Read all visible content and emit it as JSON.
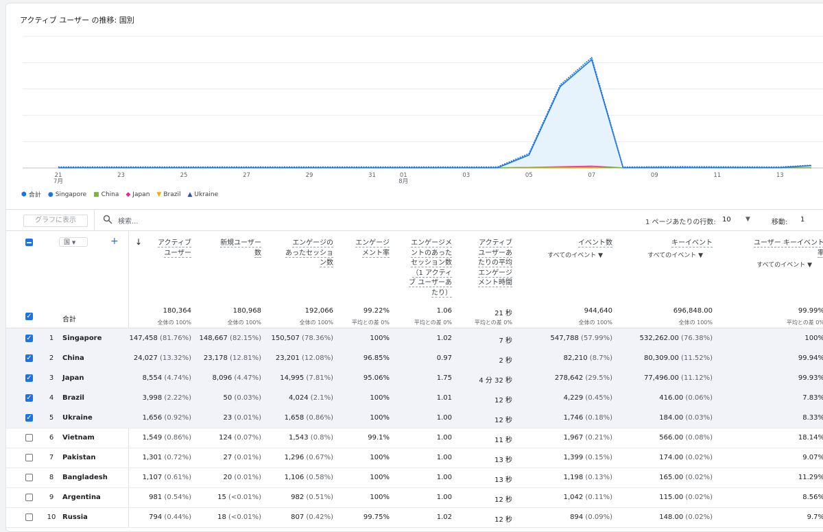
{
  "chart_title": "アクティブ ユーザー の推移: 国別",
  "chart_data": {
    "type": "area",
    "x": [
      "21",
      "22",
      "23",
      "24",
      "25",
      "26",
      "27",
      "28",
      "29",
      "30",
      "31",
      "01",
      "02",
      "03",
      "04",
      "05",
      "06",
      "07",
      "08",
      "09",
      "10",
      "11",
      "12",
      "13",
      "14"
    ],
    "x_tick_labels": [
      "21",
      "23",
      "25",
      "27",
      "29",
      "31",
      "01",
      "03",
      "05",
      "07",
      "09",
      "11",
      "13"
    ],
    "x_month_labels": {
      "21": "7月",
      "01": "8月"
    },
    "series": [
      {
        "name": "合計",
        "color": "#1a73e8",
        "values": [
          480,
          480,
          470,
          470,
          470,
          480,
          480,
          470,
          470,
          470,
          470,
          470,
          470,
          470,
          470,
          6800,
          39200,
          52000,
          450,
          560,
          620,
          560,
          510,
          450,
          1300
        ]
      },
      {
        "name": "Singapore",
        "color": "#1a73e8",
        "values": [
          100,
          100,
          100,
          100,
          100,
          100,
          100,
          100,
          100,
          100,
          100,
          100,
          100,
          100,
          100,
          6100,
          38400,
          51000,
          120,
          150,
          160,
          160,
          140,
          120,
          1100
        ]
      },
      {
        "name": "China",
        "color": "#7cb342",
        "values": [
          100,
          110,
          110,
          120,
          120,
          110,
          110,
          110,
          110,
          110,
          110,
          110,
          110,
          110,
          110,
          300,
          400,
          400,
          100,
          100,
          100,
          100,
          100,
          100,
          100
        ]
      },
      {
        "name": "Japan",
        "color": "#e52592",
        "values": [
          80,
          80,
          80,
          80,
          80,
          80,
          80,
          80,
          80,
          80,
          80,
          80,
          80,
          80,
          80,
          300,
          600,
          900,
          80,
          80,
          80,
          80,
          80,
          80,
          80
        ]
      },
      {
        "name": "Brazil",
        "color": "#f9ab00",
        "values": [
          30,
          30,
          30,
          30,
          30,
          30,
          30,
          30,
          30,
          30,
          30,
          30,
          30,
          30,
          30,
          60,
          80,
          80,
          30,
          30,
          30,
          30,
          30,
          30,
          30
        ]
      },
      {
        "name": "Ukraine",
        "color": "#3949ab",
        "values": [
          20,
          20,
          20,
          20,
          20,
          20,
          20,
          20,
          20,
          20,
          20,
          20,
          20,
          20,
          20,
          40,
          60,
          60,
          20,
          20,
          20,
          20,
          20,
          20,
          20
        ]
      }
    ],
    "ylim": [
      0,
      62000
    ],
    "grid": true,
    "legend_position": "bottom-left"
  },
  "legend": [
    {
      "label": "合計",
      "color": "#1a73e8",
      "icon": "total-marker-icon"
    },
    {
      "label": "Singapore",
      "color": "#1a73e8",
      "icon": "circle-icon"
    },
    {
      "label": "China",
      "color": "#7cb342",
      "icon": "square-icon"
    },
    {
      "label": "Japan",
      "color": "#e52592",
      "icon": "diamond-icon"
    },
    {
      "label": "Brazil",
      "color": "#f9ab00",
      "icon": "triangle-down-icon"
    },
    {
      "label": "Ukraine",
      "color": "#3949ab",
      "icon": "triangle-up-icon"
    }
  ],
  "toolbar": {
    "graph_button": "グラフに表示",
    "search_placeholder": "検索...",
    "rows_per_page_label": "1 ページあたりの行数:",
    "rows_per_page": "10",
    "goto_label": "移動:",
    "goto_value": "1"
  },
  "table": {
    "dimension": "国",
    "columns": [
      {
        "label": "アクティブ\nユーザー"
      },
      {
        "label": "新規ユーザー\n数"
      },
      {
        "label": "エンゲージの\nあったセッショ\nン数"
      },
      {
        "label": "エンゲージ\nメント率"
      },
      {
        "label": "エンゲージメ\nントのあった\nセッション数\n（1 アクティ\nブ ユーザーあ\nたり）"
      },
      {
        "label": "アクティブ\nユーザーあ\nたりの平均\nエンゲージ\nメント時間"
      },
      {
        "label": "イベント数",
        "sub": "すべてのイベント"
      },
      {
        "label": "キーイベント",
        "sub": "すべてのイベント"
      },
      {
        "label": "ユーザー キーイベント\n率",
        "sub": "すべてのイベント"
      }
    ],
    "totals_label": "合計",
    "totals": [
      {
        "value": "180,364",
        "sub": "全体の 100%"
      },
      {
        "value": "180,968",
        "sub": "全体の 100%"
      },
      {
        "value": "192,066",
        "sub": "全体の 100%"
      },
      {
        "value": "99.22%",
        "sub": "平均との差 0%"
      },
      {
        "value": "1.06",
        "sub": "平均との差 0%"
      },
      {
        "value": "21 秒",
        "sub": "平均との差 0%"
      },
      {
        "value": "944,640",
        "sub": "全体の 100%"
      },
      {
        "value": "696,848.00",
        "sub": "全体の 100%"
      },
      {
        "value": "99.99%",
        "sub": "平均との差 0%"
      }
    ],
    "rows": [
      {
        "idx": "1",
        "name": "Singapore",
        "checked": true,
        "cells": [
          [
            "147,458",
            "(81.76%)"
          ],
          [
            "148,667",
            "(82.15%)"
          ],
          [
            "150,507",
            "(78.36%)"
          ],
          [
            "100%",
            ""
          ],
          [
            "1.02",
            ""
          ],
          [
            "7 秒",
            ""
          ],
          [
            "547,788",
            "(57.99%)"
          ],
          [
            "532,262.00",
            "(76.38%)"
          ],
          [
            "100%",
            ""
          ]
        ]
      },
      {
        "idx": "2",
        "name": "China",
        "checked": true,
        "cells": [
          [
            "24,027",
            "(13.32%)"
          ],
          [
            "23,178",
            "(12.81%)"
          ],
          [
            "23,201",
            "(12.08%)"
          ],
          [
            "96.85%",
            ""
          ],
          [
            "0.97",
            ""
          ],
          [
            "2 秒",
            ""
          ],
          [
            "82,210",
            "(8.7%)"
          ],
          [
            "80,309.00",
            "(11.52%)"
          ],
          [
            "99.94%",
            ""
          ]
        ]
      },
      {
        "idx": "3",
        "name": "Japan",
        "checked": true,
        "cells": [
          [
            "8,554",
            "(4.74%)"
          ],
          [
            "8,096",
            "(4.47%)"
          ],
          [
            "14,995",
            "(7.81%)"
          ],
          [
            "95.06%",
            ""
          ],
          [
            "1.75",
            ""
          ],
          [
            "4 分 32 秒",
            ""
          ],
          [
            "278,642",
            "(29.5%)"
          ],
          [
            "77,496.00",
            "(11.12%)"
          ],
          [
            "99.93%",
            ""
          ]
        ]
      },
      {
        "idx": "4",
        "name": "Brazil",
        "checked": true,
        "cells": [
          [
            "3,998",
            "(2.22%)"
          ],
          [
            "50",
            "(0.03%)"
          ],
          [
            "4,024",
            "(2.1%)"
          ],
          [
            "100%",
            ""
          ],
          [
            "1.01",
            ""
          ],
          [
            "12 秒",
            ""
          ],
          [
            "4,229",
            "(0.45%)"
          ],
          [
            "416.00",
            "(0.06%)"
          ],
          [
            "7.83%",
            ""
          ]
        ]
      },
      {
        "idx": "5",
        "name": "Ukraine",
        "checked": true,
        "cells": [
          [
            "1,656",
            "(0.92%)"
          ],
          [
            "23",
            "(0.01%)"
          ],
          [
            "1,658",
            "(0.86%)"
          ],
          [
            "100%",
            ""
          ],
          [
            "1.00",
            ""
          ],
          [
            "12 秒",
            ""
          ],
          [
            "1,746",
            "(0.18%)"
          ],
          [
            "184.00",
            "(0.03%)"
          ],
          [
            "8.33%",
            ""
          ]
        ]
      },
      {
        "idx": "6",
        "name": "Vietnam",
        "checked": false,
        "cells": [
          [
            "1,549",
            "(0.86%)"
          ],
          [
            "124",
            "(0.07%)"
          ],
          [
            "1,543",
            "(0.8%)"
          ],
          [
            "99.1%",
            ""
          ],
          [
            "1.00",
            ""
          ],
          [
            "11 秒",
            ""
          ],
          [
            "1,967",
            "(0.21%)"
          ],
          [
            "566.00",
            "(0.08%)"
          ],
          [
            "18.14%",
            ""
          ]
        ]
      },
      {
        "idx": "7",
        "name": "Pakistan",
        "checked": false,
        "cells": [
          [
            "1,301",
            "(0.72%)"
          ],
          [
            "27",
            "(0.01%)"
          ],
          [
            "1,296",
            "(0.67%)"
          ],
          [
            "100%",
            ""
          ],
          [
            "1.00",
            ""
          ],
          [
            "13 秒",
            ""
          ],
          [
            "1,399",
            "(0.15%)"
          ],
          [
            "174.00",
            "(0.02%)"
          ],
          [
            "9.07%",
            ""
          ]
        ]
      },
      {
        "idx": "8",
        "name": "Bangladesh",
        "checked": false,
        "cells": [
          [
            "1,107",
            "(0.61%)"
          ],
          [
            "20",
            "(0.01%)"
          ],
          [
            "1,106",
            "(0.58%)"
          ],
          [
            "100%",
            ""
          ],
          [
            "1.00",
            ""
          ],
          [
            "13 秒",
            ""
          ],
          [
            "1,198",
            "(0.13%)"
          ],
          [
            "165.00",
            "(0.02%)"
          ],
          [
            "11.29%",
            ""
          ]
        ]
      },
      {
        "idx": "9",
        "name": "Argentina",
        "checked": false,
        "cells": [
          [
            "981",
            "(0.54%)"
          ],
          [
            "15",
            "(<0.01%)"
          ],
          [
            "982",
            "(0.51%)"
          ],
          [
            "100%",
            ""
          ],
          [
            "1.00",
            ""
          ],
          [
            "12 秒",
            ""
          ],
          [
            "1,042",
            "(0.11%)"
          ],
          [
            "115.00",
            "(0.02%)"
          ],
          [
            "8.56%",
            ""
          ]
        ]
      },
      {
        "idx": "10",
        "name": "Russia",
        "checked": false,
        "cells": [
          [
            "794",
            "(0.44%)"
          ],
          [
            "18",
            "(<0.01%)"
          ],
          [
            "807",
            "(0.42%)"
          ],
          [
            "99.75%",
            ""
          ],
          [
            "1.02",
            ""
          ],
          [
            "12 秒",
            ""
          ],
          [
            "894",
            "(0.09%)"
          ],
          [
            "148.00",
            "(0.02%)"
          ],
          [
            "9.7%",
            ""
          ]
        ]
      }
    ]
  }
}
